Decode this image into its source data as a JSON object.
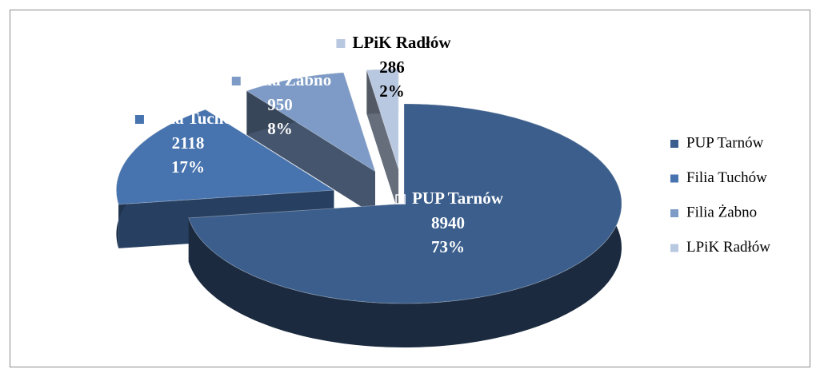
{
  "chart_data": {
    "type": "pie",
    "categories": [
      "PUP Tarnów",
      "Filia Tuchów",
      "Filia Żabno",
      "LPiK Radłów"
    ],
    "values": [
      8940,
      2118,
      950,
      286
    ],
    "percent_labels": [
      "73%",
      "17%",
      "8%",
      "2%"
    ],
    "colors": [
      "#3b5e8c",
      "#4773ae",
      "#7d9bc6",
      "#b9c8e1"
    ],
    "legend": "right"
  }
}
